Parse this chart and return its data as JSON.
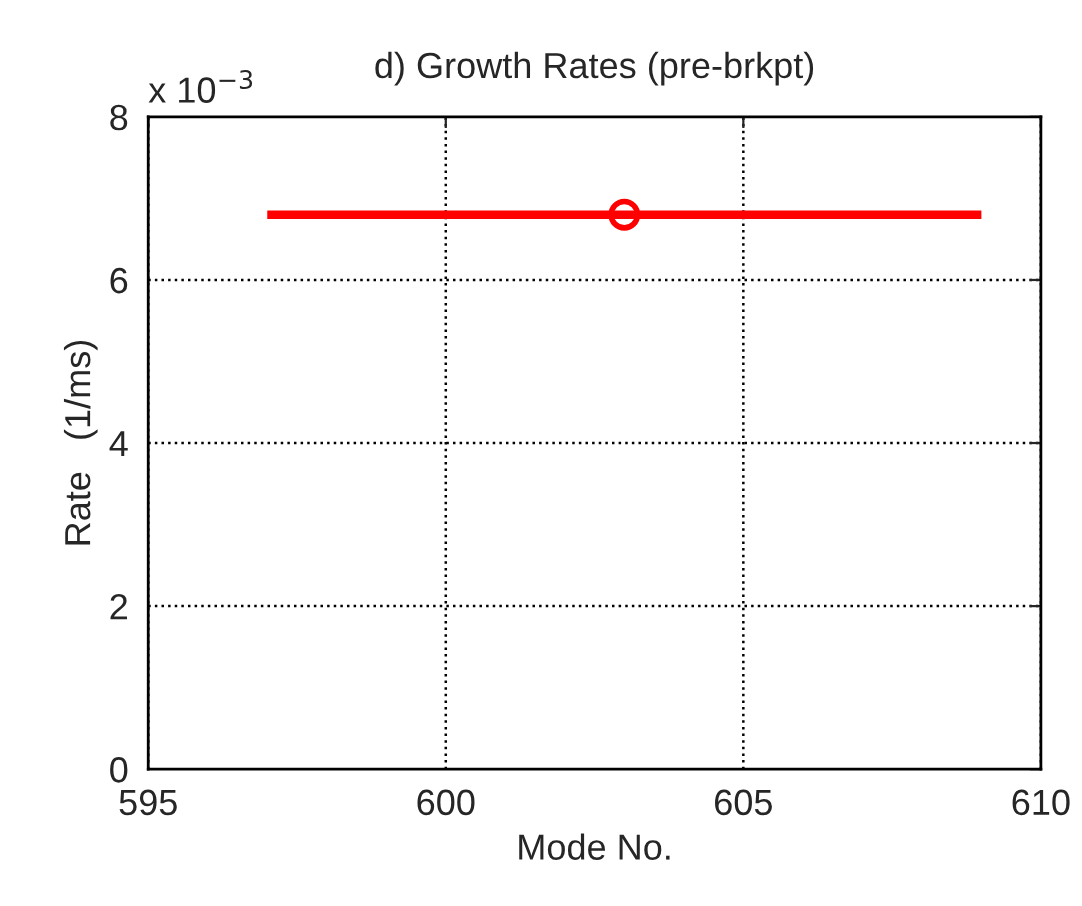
{
  "chart_data": {
    "type": "scatter",
    "title": "d) Growth Rates (pre-brkpt)",
    "xlabel": "Mode No.",
    "ylabel": "Rate   (1/ms)",
    "annotations": [
      "x 10$^{−3}$"
    ],
    "series": [
      {
        "color": "#ff0000",
        "x": [
          603
        ],
        "values": [
          6.8
        ],
        "xerrors": [
          6
        ]
      }
    ],
    "marker": "circle",
    "xlim": [
      595,
      610
    ],
    "xticks": [
      595,
      600,
      605,
      610
    ],
    "ylim": [
      0,
      8
    ],
    "yticks": [
      0,
      2,
      4,
      6,
      8
    ],
    "grid": true
  }
}
